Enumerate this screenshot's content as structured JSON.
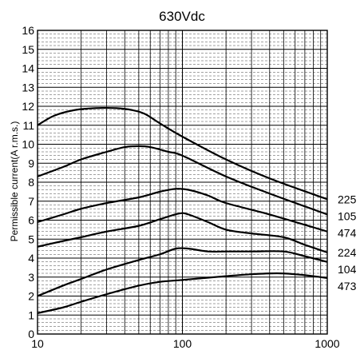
{
  "chart_data": {
    "type": "line",
    "title": "630Vdc",
    "xlabel": "",
    "ylabel": "Permissible current(A r.m.s.)",
    "x_scale": "log",
    "xlim": [
      10,
      1000
    ],
    "ylim": [
      0,
      16
    ],
    "x_ticks": [
      "10",
      "100",
      "1000"
    ],
    "y_ticks": [
      "0",
      "1",
      "2",
      "3",
      "4",
      "5",
      "6",
      "7",
      "8",
      "9",
      "10",
      "11",
      "12",
      "13",
      "14",
      "15",
      "16"
    ],
    "grid": true,
    "series": [
      {
        "name": "225",
        "points": [
          [
            10,
            11.0
          ],
          [
            13,
            11.5
          ],
          [
            18,
            11.8
          ],
          [
            25,
            11.9
          ],
          [
            35,
            11.9
          ],
          [
            45,
            11.8
          ],
          [
            55,
            11.6
          ],
          [
            70,
            11.1
          ],
          [
            100,
            10.4
          ],
          [
            200,
            9.2
          ],
          [
            400,
            8.2
          ],
          [
            1000,
            7.1
          ]
        ]
      },
      {
        "name": "105",
        "points": [
          [
            10,
            8.3
          ],
          [
            15,
            8.8
          ],
          [
            20,
            9.2
          ],
          [
            30,
            9.6
          ],
          [
            40,
            9.85
          ],
          [
            50,
            9.9
          ],
          [
            60,
            9.85
          ],
          [
            80,
            9.6
          ],
          [
            100,
            9.4
          ],
          [
            200,
            8.3
          ],
          [
            400,
            7.4
          ],
          [
            1000,
            6.3
          ]
        ]
      },
      {
        "name": "474",
        "points": [
          [
            10,
            5.9
          ],
          [
            15,
            6.3
          ],
          [
            20,
            6.6
          ],
          [
            30,
            6.9
          ],
          [
            50,
            7.2
          ],
          [
            70,
            7.5
          ],
          [
            90,
            7.65
          ],
          [
            110,
            7.6
          ],
          [
            150,
            7.3
          ],
          [
            200,
            6.9
          ],
          [
            400,
            6.3
          ],
          [
            1000,
            5.4
          ]
        ]
      },
      {
        "name": "224",
        "points": [
          [
            10,
            4.6
          ],
          [
            15,
            4.9
          ],
          [
            20,
            5.1
          ],
          [
            30,
            5.4
          ],
          [
            50,
            5.7
          ],
          [
            70,
            6.05
          ],
          [
            95,
            6.35
          ],
          [
            110,
            6.3
          ],
          [
            150,
            5.9
          ],
          [
            200,
            5.5
          ],
          [
            300,
            5.3
          ],
          [
            500,
            5.1
          ],
          [
            700,
            4.7
          ],
          [
            1000,
            4.3
          ]
        ]
      },
      {
        "name": "104",
        "points": [
          [
            10,
            2.0
          ],
          [
            15,
            2.55
          ],
          [
            20,
            2.9
          ],
          [
            30,
            3.4
          ],
          [
            50,
            3.9
          ],
          [
            70,
            4.2
          ],
          [
            90,
            4.5
          ],
          [
            110,
            4.5
          ],
          [
            150,
            4.35
          ],
          [
            200,
            4.35
          ],
          [
            300,
            4.35
          ],
          [
            500,
            4.35
          ],
          [
            700,
            4.1
          ],
          [
            1000,
            3.8
          ]
        ]
      },
      {
        "name": "473",
        "points": [
          [
            10,
            1.1
          ],
          [
            15,
            1.4
          ],
          [
            20,
            1.7
          ],
          [
            30,
            2.1
          ],
          [
            50,
            2.55
          ],
          [
            70,
            2.75
          ],
          [
            100,
            2.85
          ],
          [
            200,
            3.05
          ],
          [
            300,
            3.15
          ],
          [
            450,
            3.2
          ],
          [
            600,
            3.15
          ],
          [
            800,
            3.05
          ],
          [
            1000,
            2.95
          ]
        ]
      }
    ]
  }
}
